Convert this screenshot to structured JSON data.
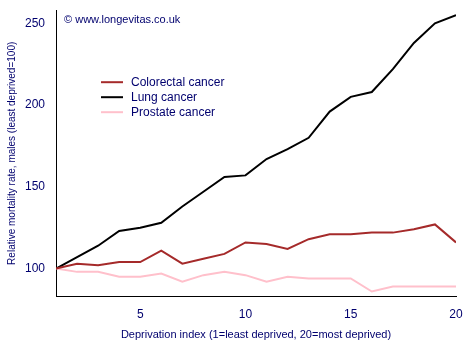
{
  "chart_data": {
    "type": "line",
    "annotation": "© www.longevitas.co.uk",
    "x_label": "Deprivation index (1=least deprived, 20=most deprived)",
    "y_label": "Relative mortality rate, males (least deprived=100)",
    "x": [
      1,
      2,
      3,
      4,
      5,
      6,
      7,
      8,
      9,
      10,
      11,
      12,
      13,
      14,
      15,
      16,
      17,
      18,
      19,
      20
    ],
    "series": [
      {
        "name": "Colorectal cancer",
        "color": "#a52a2a",
        "values": [
          100,
          103,
          102,
          104,
          104,
          111,
          103,
          106,
          109,
          116,
          115,
          112,
          118,
          121,
          121,
          122,
          122,
          124,
          127,
          116
        ]
      },
      {
        "name": "Lung cancer",
        "color": "#000000",
        "values": [
          100,
          107,
          114,
          123,
          125,
          128,
          138,
          147,
          156,
          157,
          167,
          173,
          180,
          196,
          205,
          208,
          222,
          238,
          250,
          255
        ]
      },
      {
        "name": "Prostate cancer",
        "color": "#ffc0cb",
        "values": [
          100,
          98,
          98,
          95,
          95,
          97,
          92,
          96,
          98,
          96,
          92,
          95,
          94,
          94,
          94,
          86,
          89,
          89,
          89,
          89
        ]
      }
    ],
    "xlim": [
      1,
      20
    ],
    "xticks": [
      5,
      10,
      15,
      20
    ],
    "ylim": [
      83,
      258
    ],
    "yticks": [
      100,
      150,
      200,
      250
    ],
    "grid": false,
    "legend": "top-left"
  }
}
